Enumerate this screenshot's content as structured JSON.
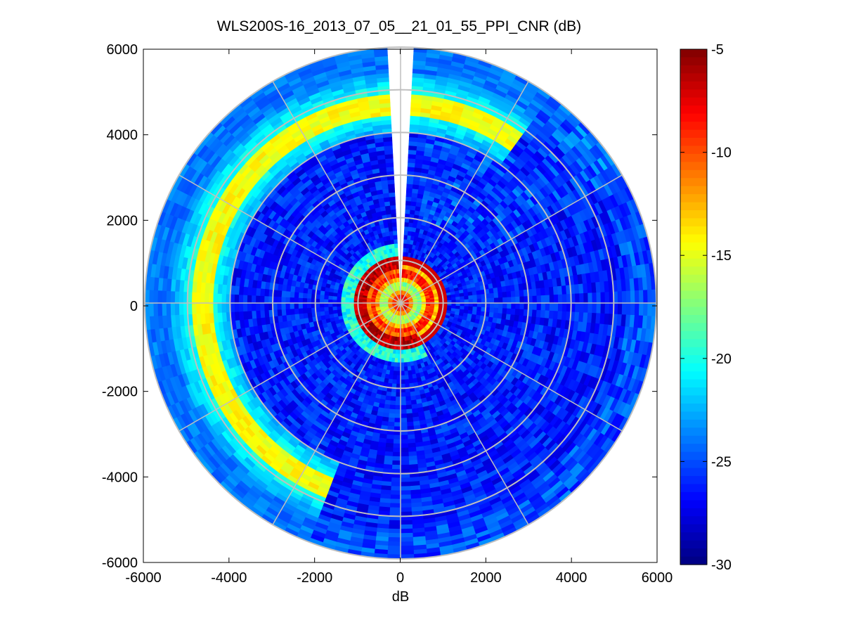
{
  "chart_data": {
    "type": "heatmap",
    "subtype": "polar-ppi",
    "title": "WLS200S-16_2013_07_05__21_01_55_PPI_CNR (dB)",
    "xlabel": "dB",
    "ylabel": "",
    "xlim": [
      -6000,
      6000
    ],
    "ylim": [
      -6000,
      6000
    ],
    "x_ticks": [
      "-6000",
      "-4000",
      "-2000",
      "0",
      "2000",
      "4000",
      "6000"
    ],
    "y_ticks": [
      "6000",
      "4000",
      "2000",
      "0",
      "-2000",
      "-4000",
      "-6000"
    ],
    "max_range": 6000,
    "range_rings": [
      1000,
      2000,
      3000,
      4000,
      5000,
      6000
    ],
    "spokes_deg": [
      0,
      30,
      60,
      90,
      120,
      150,
      180,
      210,
      240,
      270,
      300,
      330
    ],
    "missing_sector_deg": [
      -4,
      4
    ],
    "near_cut_sector_deg": [
      4,
      153
    ],
    "near_cut_range": 1150,
    "features": [
      {
        "name": "near-field core",
        "range": [
          0,
          1100
        ],
        "cnr_db": -12
      },
      {
        "name": "aerosol layer band",
        "range": [
          4400,
          4950
        ],
        "azimuth_deg": [
          200,
          395
        ],
        "cnr_db": -15.5
      },
      {
        "name": "background",
        "range": [
          1200,
          6000
        ],
        "cnr_db": -25
      }
    ],
    "colorbar": {
      "min": -30,
      "max": -5,
      "ticks": [
        "-5",
        "-10",
        "-15",
        "-20",
        "-25",
        "-30"
      ],
      "colormap": "jet"
    },
    "grid": true
  },
  "colors": {
    "grid": "#bfbfbf",
    "axis": "#000000",
    "background": "#ffffff"
  }
}
